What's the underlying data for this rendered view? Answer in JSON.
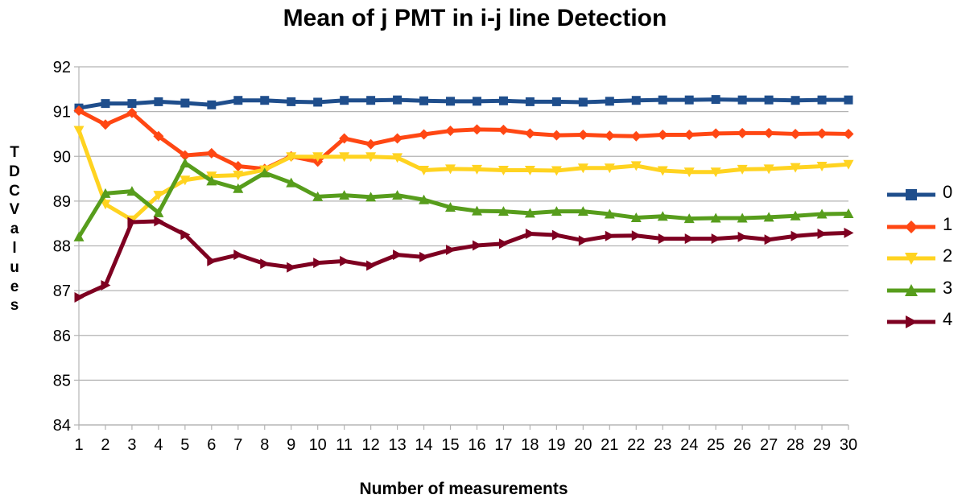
{
  "chart_data": {
    "type": "line",
    "title": "Mean of j PMT in i-j line Detection",
    "xlabel": "Number of measurements",
    "ylabel": "TDCValues",
    "ylim": [
      84,
      92
    ],
    "yticks": [
      84,
      85,
      86,
      87,
      88,
      89,
      90,
      91,
      92
    ],
    "grid": true,
    "legend_position": "right",
    "categories": [
      "1",
      "2",
      "3",
      "4",
      "5",
      "6",
      "7",
      "8",
      "9",
      "10",
      "11",
      "12",
      "13",
      "14",
      "15",
      "16",
      "17",
      "18",
      "19",
      "20",
      "21",
      "22",
      "23",
      "24",
      "25",
      "26",
      "27",
      "28",
      "29",
      "30"
    ],
    "series": [
      {
        "name": "0",
        "color": "#1f4e8c",
        "marker": "square",
        "values": [
          91.08,
          91.18,
          91.18,
          91.22,
          91.19,
          91.15,
          91.25,
          91.25,
          91.22,
          91.21,
          91.25,
          91.25,
          91.26,
          91.24,
          91.23,
          91.23,
          91.24,
          91.22,
          91.22,
          91.21,
          91.23,
          91.25,
          91.26,
          91.26,
          91.27,
          91.26,
          91.26,
          91.25,
          91.26,
          91.26
        ]
      },
      {
        "name": "1",
        "color": "#ff4713",
        "marker": "diamond",
        "values": [
          91.02,
          90.71,
          90.97,
          90.45,
          90.02,
          90.07,
          89.78,
          89.72,
          90.0,
          89.88,
          90.4,
          90.27,
          90.4,
          90.49,
          90.57,
          90.6,
          90.59,
          90.51,
          90.47,
          90.48,
          90.46,
          90.45,
          90.48,
          90.48,
          90.51,
          90.52,
          90.52,
          90.5,
          90.51,
          90.5
        ]
      },
      {
        "name": "2",
        "color": "#ffd320",
        "marker": "triangle-down",
        "values": [
          90.58,
          88.93,
          88.58,
          89.13,
          89.47,
          89.56,
          89.58,
          89.7,
          89.99,
          89.99,
          89.99,
          89.99,
          89.97,
          89.69,
          89.72,
          89.71,
          89.69,
          89.69,
          89.68,
          89.74,
          89.74,
          89.79,
          89.68,
          89.65,
          89.65,
          89.71,
          89.72,
          89.75,
          89.78,
          89.82
        ]
      },
      {
        "name": "3",
        "color": "#579d1c",
        "marker": "triangle-up",
        "values": [
          88.2,
          89.17,
          89.22,
          88.74,
          89.85,
          89.45,
          89.28,
          89.63,
          89.41,
          89.1,
          89.13,
          89.09,
          89.13,
          89.03,
          88.86,
          88.78,
          88.77,
          88.73,
          88.77,
          88.77,
          88.71,
          88.63,
          88.66,
          88.61,
          88.62,
          88.62,
          88.64,
          88.67,
          88.71,
          88.72
        ]
      },
      {
        "name": "4",
        "color": "#7e0021",
        "marker": "triangle-right",
        "values": [
          86.85,
          87.12,
          88.53,
          88.55,
          88.25,
          87.66,
          87.8,
          87.6,
          87.52,
          87.62,
          87.66,
          87.56,
          87.8,
          87.75,
          87.91,
          88.01,
          88.05,
          88.27,
          88.24,
          88.12,
          88.22,
          88.23,
          88.16,
          88.16,
          88.16,
          88.2,
          88.14,
          88.22,
          88.27,
          88.29
        ]
      }
    ]
  }
}
